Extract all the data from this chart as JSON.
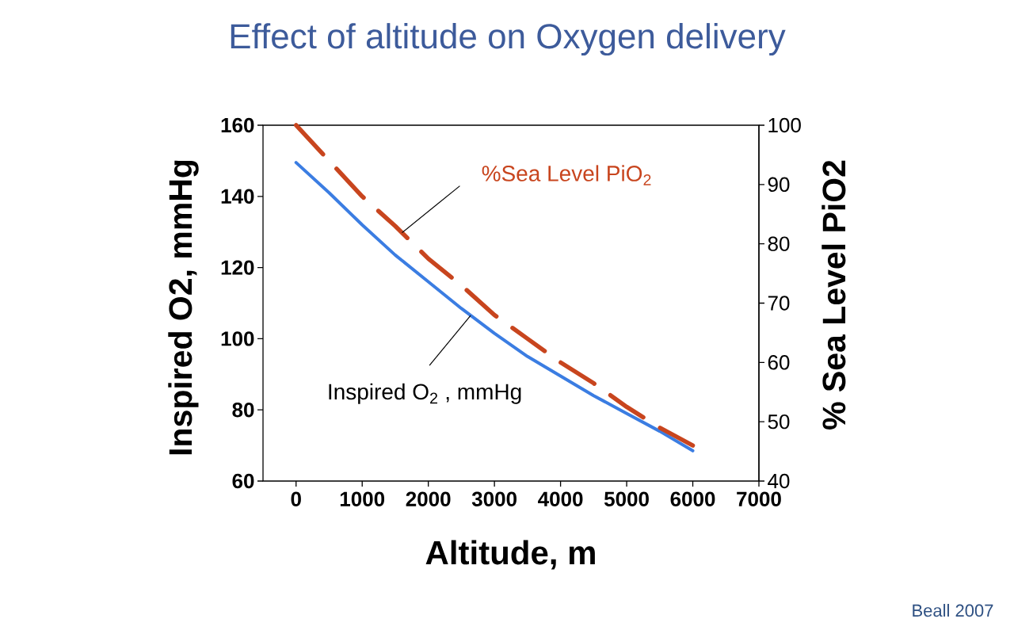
{
  "chart_data": {
    "type": "line",
    "title": "Effect of altitude on Oxygen delivery",
    "xlabel": "Altitude, m",
    "ylabel": "Inspired O2, mmHg",
    "y2label": "% Sea Level PiO2",
    "x": [
      0,
      500,
      1000,
      1500,
      2000,
      2500,
      3000,
      3500,
      4000,
      4500,
      5000,
      5500,
      6000
    ],
    "series": [
      {
        "name": "Inspired O$_{2}$ , mmHg",
        "color": "#3b7de2",
        "line_style": "solid",
        "values": [
          149.5,
          141,
          132,
          123.5,
          116,
          108.5,
          101.5,
          95,
          89.5,
          84,
          79,
          74,
          68.5
        ]
      },
      {
        "name": "%Sea Level PiO$_{2}$",
        "color": "#c8451e",
        "line_style": "dashed",
        "axis": "y2",
        "values": [
          100,
          94,
          88,
          83,
          77.5,
          73,
          68,
          64,
          60,
          56.5,
          52.5,
          49,
          46
        ]
      }
    ],
    "xlim": [
      -500,
      7000
    ],
    "xticks": [
      0,
      1000,
      2000,
      3000,
      4000,
      5000,
      6000,
      7000
    ],
    "ylim": [
      60,
      160
    ],
    "yticks": [
      60,
      80,
      100,
      120,
      140,
      160
    ],
    "y2lim": [
      40,
      100
    ],
    "y2ticks": [
      40,
      50,
      60,
      70,
      80,
      90,
      100
    ],
    "annotations": [
      "Beall 2007"
    ]
  }
}
